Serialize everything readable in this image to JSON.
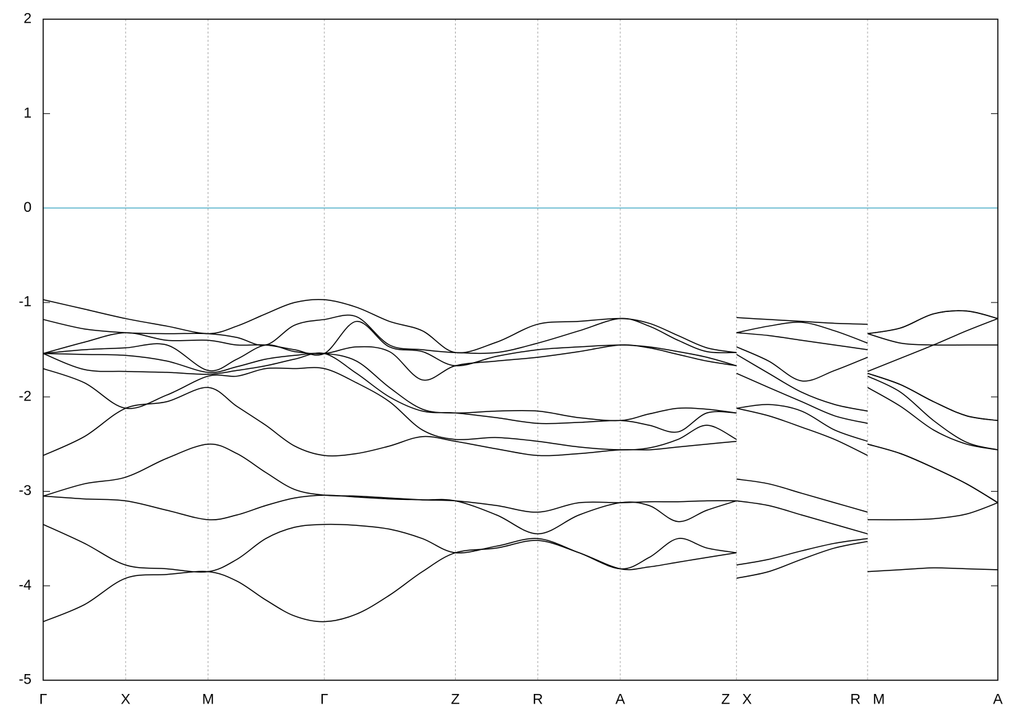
{
  "chart_data": {
    "type": "line",
    "x": [
      0,
      0.5,
      1,
      1.5,
      2,
      2.35,
      2.7,
      3.05,
      3.41,
      3.8,
      4.2,
      4.6,
      5,
      5.5,
      6,
      6.5,
      7,
      7.35,
      7.7,
      8.05,
      8.41,
      8.41,
      8.41,
      8.8,
      9.2,
      9.6,
      10,
      10,
      10,
      10.4,
      10.8,
      11.2,
      11.58
    ],
    "xlim": [
      0,
      11.58
    ],
    "xticks": [
      {
        "value": 0,
        "label": "Γ"
      },
      {
        "value": 1,
        "label": "X"
      },
      {
        "value": 2,
        "label": "M"
      },
      {
        "value": 3.41,
        "label": "Γ"
      },
      {
        "value": 5,
        "label": "Z"
      },
      {
        "value": 6,
        "label": "R"
      },
      {
        "value": 7,
        "label": "A"
      },
      {
        "value": 8.41,
        "label": "Z X"
      },
      {
        "value": 10,
        "label": "R M"
      },
      {
        "value": 11.58,
        "label": "A"
      }
    ],
    "ylim": [
      -5,
      2
    ],
    "yticks": [
      -5,
      -4,
      -3,
      -2,
      -1,
      0,
      1,
      2
    ],
    "grid": true,
    "reference_line": {
      "value": 0,
      "color": "#5ab4cc"
    },
    "series": [
      {
        "color": "#000000",
        "values": [
          -4.38,
          -4.2,
          -3.92,
          -3.88,
          -3.85,
          -3.95,
          -4.15,
          -4.32,
          -4.38,
          -4.3,
          -4.1,
          -3.85,
          -3.65,
          -3.6,
          -3.52,
          -3.65,
          -3.82,
          -3.8,
          -3.75,
          -3.7,
          -3.65,
          null,
          -3.92,
          -3.85,
          -3.72,
          -3.6,
          -3.53,
          null,
          -3.85,
          -3.83,
          -3.81,
          -3.82,
          -3.83
        ]
      },
      {
        "color": "#000000",
        "values": [
          -3.35,
          -3.55,
          -3.78,
          -3.82,
          -3.85,
          -3.72,
          -3.5,
          -3.38,
          -3.35,
          -3.36,
          -3.4,
          -3.5,
          -3.65,
          -3.58,
          -3.5,
          -3.65,
          -3.82,
          -3.7,
          -3.5,
          -3.6,
          -3.65,
          null,
          -3.78,
          -3.72,
          -3.63,
          -3.55,
          -3.5,
          null,
          -3.3,
          -3.3,
          -3.29,
          -3.24,
          -3.12
        ]
      },
      {
        "color": "#000000",
        "values": [
          -3.05,
          -3.08,
          -3.1,
          -3.2,
          -3.3,
          -3.25,
          -3.15,
          -3.07,
          -3.04,
          -3.06,
          -3.08,
          -3.09,
          -3.1,
          -3.25,
          -3.45,
          -3.25,
          -3.12,
          -3.15,
          -3.32,
          -3.2,
          -3.1,
          null,
          -3.1,
          -3.15,
          -3.25,
          -3.35,
          -3.45,
          null,
          -2.5,
          -2.6,
          -2.75,
          -2.92,
          -3.12
        ]
      },
      {
        "color": "#000000",
        "values": [
          -3.05,
          -2.92,
          -2.85,
          -2.65,
          -2.5,
          -2.6,
          -2.8,
          -2.98,
          -3.04,
          -3.05,
          -3.07,
          -3.09,
          -3.1,
          -3.15,
          -3.22,
          -3.12,
          -3.12,
          -3.11,
          -3.11,
          -3.1,
          -3.1,
          null,
          -2.87,
          -2.92,
          -3.02,
          -3.12,
          -3.22,
          null,
          -2.5,
          -2.6,
          -2.75,
          -2.92,
          -3.12
        ]
      },
      {
        "color": "#000000",
        "values": [
          -2.62,
          -2.42,
          -2.12,
          -2.05,
          -1.9,
          -2.1,
          -2.3,
          -2.52,
          -2.62,
          -2.6,
          -2.52,
          -2.42,
          -2.47,
          -2.55,
          -2.62,
          -2.6,
          -2.56,
          -2.56,
          -2.53,
          -2.5,
          -2.47,
          null,
          -2.12,
          -2.2,
          -2.32,
          -2.45,
          -2.62,
          null,
          -1.9,
          -2.1,
          -2.35,
          -2.5,
          -2.56
        ]
      },
      {
        "color": "#000000",
        "values": [
          -1.7,
          -1.85,
          -2.12,
          -1.98,
          -1.78,
          -1.78,
          -1.7,
          -1.7,
          -1.7,
          -1.85,
          -2.05,
          -2.35,
          -2.45,
          -2.43,
          -2.47,
          -2.53,
          -2.56,
          -2.54,
          -2.45,
          -2.3,
          -2.45,
          null,
          -2.12,
          -2.08,
          -2.15,
          -2.35,
          -2.47,
          null,
          -1.78,
          -1.95,
          -2.25,
          -2.48,
          -2.56
        ]
      },
      {
        "color": "#000000",
        "values": [
          -1.54,
          -1.71,
          -1.73,
          -1.74,
          -1.76,
          -1.72,
          -1.67,
          -1.6,
          -1.54,
          -1.75,
          -2.0,
          -2.15,
          -2.17,
          -2.22,
          -2.28,
          -2.27,
          -2.25,
          -2.3,
          -2.37,
          -2.17,
          -2.17,
          null,
          -1.75,
          -1.9,
          -2.05,
          -2.2,
          -2.28,
          null,
          -1.75,
          -1.87,
          -2.05,
          -2.2,
          -2.25
        ]
      },
      {
        "color": "#000000",
        "values": [
          -1.54,
          -1.55,
          -1.56,
          -1.62,
          -1.74,
          -1.68,
          -1.6,
          -1.56,
          -1.54,
          -1.62,
          -1.9,
          -2.13,
          -2.17,
          -2.15,
          -2.15,
          -2.22,
          -2.25,
          -2.18,
          -2.12,
          -2.13,
          -2.17,
          null,
          -1.55,
          -1.75,
          -1.95,
          -2.08,
          -2.15,
          null,
          -1.75,
          -1.87,
          -2.05,
          -2.2,
          -2.25
        ]
      },
      {
        "color": "#000000",
        "values": [
          -1.54,
          -1.5,
          -1.48,
          -1.45,
          -1.72,
          -1.6,
          -1.45,
          -1.52,
          -1.54,
          -1.47,
          -1.52,
          -1.82,
          -1.67,
          -1.62,
          -1.58,
          -1.52,
          -1.45,
          -1.48,
          -1.55,
          -1.62,
          -1.67,
          null,
          -1.47,
          -1.62,
          -1.83,
          -1.72,
          -1.58,
          null,
          -1.73,
          -1.59,
          -1.45,
          -1.3,
          -1.17
        ]
      },
      {
        "color": "#000000",
        "values": [
          -1.54,
          -1.42,
          -1.32,
          -1.4,
          -1.4,
          -1.45,
          -1.45,
          -1.5,
          -1.54,
          -1.2,
          -1.47,
          -1.52,
          -1.67,
          -1.57,
          -1.5,
          -1.47,
          -1.45,
          -1.47,
          -1.52,
          -1.58,
          -1.67,
          null,
          -1.32,
          -1.35,
          -1.4,
          -1.45,
          -1.5,
          null,
          -1.33,
          -1.43,
          -1.45,
          -1.45,
          -1.45
        ]
      },
      {
        "color": "#000000",
        "values": [
          -1.18,
          -1.28,
          -1.32,
          -1.33,
          -1.33,
          -1.37,
          -1.45,
          -1.24,
          -1.18,
          -1.15,
          -1.45,
          -1.5,
          -1.53,
          -1.53,
          -1.43,
          -1.3,
          -1.17,
          -1.25,
          -1.4,
          -1.52,
          -1.53,
          null,
          -1.32,
          -1.25,
          -1.21,
          -1.3,
          -1.43,
          null,
          -1.33,
          -1.27,
          -1.12,
          -1.09,
          -1.17
        ]
      },
      {
        "color": "#000000",
        "values": [
          -0.97,
          -1.07,
          -1.17,
          -1.25,
          -1.33,
          -1.25,
          -1.12,
          -1.0,
          -0.97,
          -1.05,
          -1.2,
          -1.3,
          -1.53,
          -1.42,
          -1.23,
          -1.2,
          -1.17,
          -1.22,
          -1.35,
          -1.48,
          -1.53,
          null,
          -1.16,
          -1.18,
          -1.2,
          -1.22,
          -1.23,
          null,
          -1.33,
          -1.27,
          -1.12,
          -1.09,
          -1.17
        ]
      }
    ]
  }
}
